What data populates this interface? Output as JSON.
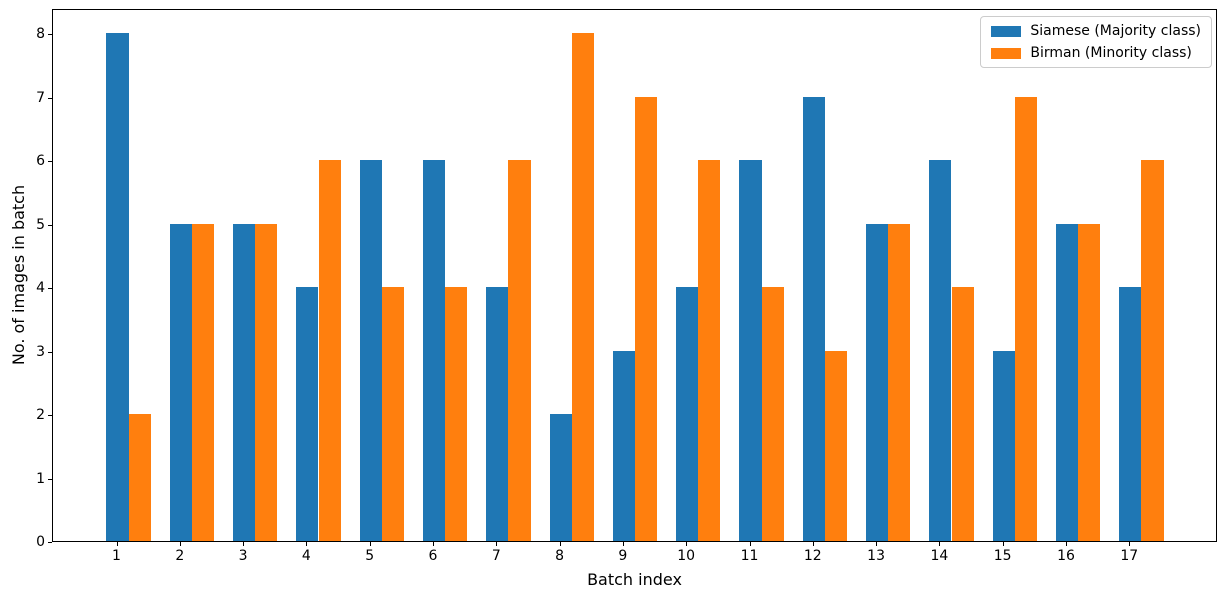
{
  "chart_data": {
    "type": "bar",
    "title": "",
    "xlabel": "Batch index",
    "ylabel": "No. of images in batch",
    "categories": [
      1,
      2,
      3,
      4,
      5,
      6,
      7,
      8,
      9,
      10,
      11,
      12,
      13,
      14,
      15,
      16,
      17
    ],
    "series": [
      {
        "name": "Siamese (Majority class)",
        "color": "#1f77b4",
        "values": [
          8,
          5,
          5,
          4,
          6,
          6,
          4,
          2,
          3,
          4,
          6,
          7,
          5,
          6,
          3,
          5,
          4
        ]
      },
      {
        "name": "Birman (Minority class)",
        "color": "#ff7f0e",
        "values": [
          2,
          5,
          5,
          6,
          4,
          4,
          6,
          8,
          7,
          6,
          4,
          3,
          5,
          4,
          7,
          5,
          6
        ]
      }
    ],
    "yticks": [
      0,
      1,
      2,
      3,
      4,
      5,
      6,
      7,
      8
    ],
    "ylim": [
      0,
      8.4
    ],
    "grid": false,
    "legend_position": "upper right",
    "axis_color": "#000000",
    "background_color": "#ffffff"
  }
}
